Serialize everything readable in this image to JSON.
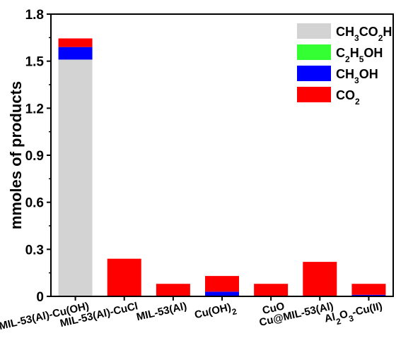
{
  "chart_data": {
    "type": "bar",
    "stacked": true,
    "ylabel": "mmoles of products",
    "xlabel": "",
    "ylim": [
      0,
      1.8
    ],
    "yticks": [
      "0",
      "0.3",
      "0.6",
      "0.9",
      "1.2",
      "1.5",
      "1.8"
    ],
    "grid": false,
    "legend_position": "top-right",
    "categories": [
      {
        "label": "MIL-53(Al)-Cu(OH)"
      },
      {
        "label": "MIL-53(Al)-CuCl"
      },
      {
        "label": "MIL-53(Al)"
      },
      {
        "label": "Cu(OH)",
        "sub": "2"
      },
      {
        "label": "CuO"
      },
      {
        "label": "Cu@MIL-53(Al)"
      },
      {
        "label": "Al",
        "sub": "2",
        "mid": "O",
        "sub2": "3",
        "tail": "-Cu(II)"
      }
    ],
    "series": [
      {
        "key": "ch3co2h",
        "color": "#d3d3d3",
        "values": [
          1.51,
          0,
          0,
          0,
          0,
          0,
          0
        ]
      },
      {
        "key": "c2h5oh",
        "color": "#33ff33",
        "values": [
          0,
          0,
          0,
          0,
          0,
          0,
          0
        ]
      },
      {
        "key": "ch3oh",
        "color": "#0000ff",
        "values": [
          0.08,
          0,
          0,
          0.03,
          0,
          0,
          0.01
        ]
      },
      {
        "key": "co2",
        "color": "#ff0000",
        "values": [
          0.055,
          0.24,
          0.08,
          0.1,
          0.08,
          0.22,
          0.07
        ]
      }
    ],
    "legend": [
      {
        "color": "#d3d3d3",
        "parts": [
          "CH",
          "3",
          "CO",
          "2",
          "H"
        ]
      },
      {
        "color": "#33ff33",
        "parts": [
          "C",
          "2",
          "H",
          "5",
          "OH"
        ]
      },
      {
        "color": "#0000ff",
        "parts": [
          "CH",
          "3",
          "OH"
        ]
      },
      {
        "color": "#ff0000",
        "parts": [
          "CO",
          "2"
        ]
      }
    ]
  }
}
